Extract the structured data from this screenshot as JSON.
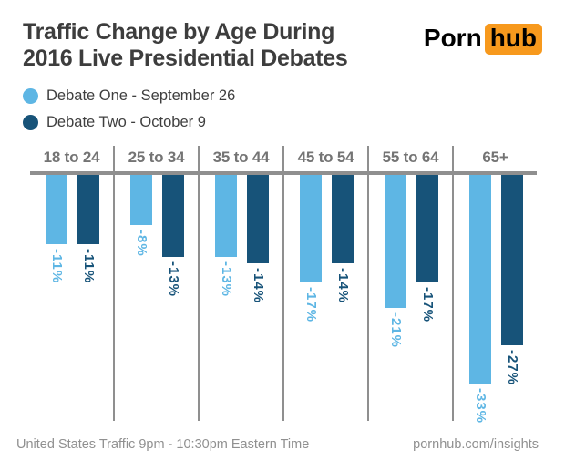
{
  "header": {
    "title_line1": "Traffic Change by Age During",
    "title_line2": "2016 Live Presidential Debates"
  },
  "logo": {
    "part1": "Porn",
    "part2": "hub",
    "accent_color": "#f7991d",
    "text_color": "#000000"
  },
  "chart_data": {
    "type": "bar",
    "title": "Traffic Change by Age During 2016 Live Presidential Debates",
    "categories": [
      "18 to 24",
      "25 to 34",
      "35 to 44",
      "45 to 54",
      "55 to 64",
      "65+"
    ],
    "series": [
      {
        "name": "Debate One - September 26",
        "color": "#5eb6e4",
        "values": [
          -11,
          -8,
          -13,
          -17,
          -21,
          -33
        ]
      },
      {
        "name": "Debate Two - October 9",
        "color": "#175379",
        "values": [
          -11,
          -13,
          -14,
          -14,
          -17,
          -27
        ]
      }
    ],
    "unit": "%",
    "ylim": [
      -35,
      0
    ],
    "grid": false,
    "value_labels_shown": true,
    "value_label_style": "rotated-90-below-bar",
    "legend_position": "top-left",
    "baseline_color": "#8f8f8f",
    "category_label_color": "#747474"
  },
  "footer": {
    "left": "United States Traffic  9pm - 10:30pm Eastern Time",
    "right": "pornhub.com/insights"
  }
}
